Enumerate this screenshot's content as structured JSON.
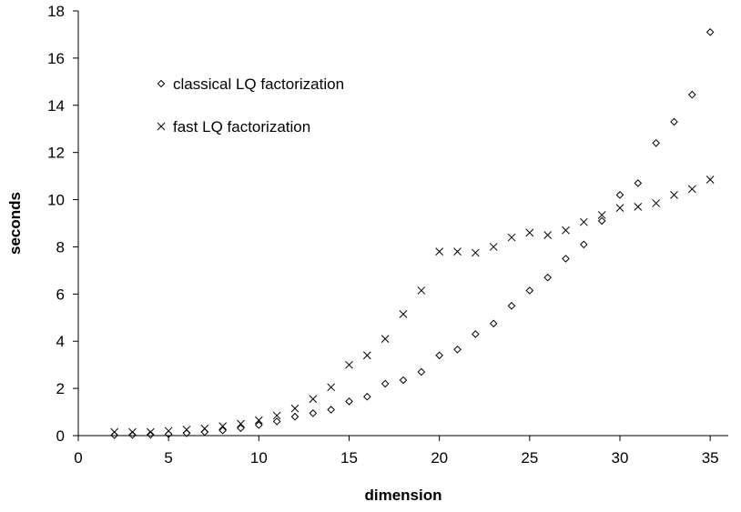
{
  "chart_data": {
    "type": "scatter",
    "xlabel": "dimension",
    "ylabel": "seconds",
    "xlim": [
      0,
      36
    ],
    "ylim": [
      0,
      18
    ],
    "x_ticks": [
      0,
      5,
      10,
      15,
      20,
      25,
      30,
      35
    ],
    "y_ticks": [
      0,
      2,
      4,
      6,
      8,
      10,
      12,
      14,
      16,
      18
    ],
    "grid": false,
    "legend_position": "top-left",
    "series": [
      {
        "name": "classical LQ factorization",
        "marker": "diamond",
        "x": [
          2,
          3,
          4,
          5,
          6,
          7,
          8,
          9,
          10,
          11,
          12,
          13,
          14,
          15,
          16,
          17,
          18,
          19,
          20,
          21,
          22,
          23,
          24,
          25,
          26,
          27,
          28,
          29,
          30,
          31,
          32,
          33,
          34,
          35
        ],
        "y": [
          0.02,
          0.03,
          0.04,
          0.06,
          0.1,
          0.15,
          0.22,
          0.32,
          0.45,
          0.6,
          0.8,
          0.95,
          1.1,
          1.45,
          1.65,
          2.2,
          2.35,
          2.7,
          3.4,
          3.65,
          4.3,
          4.75,
          5.5,
          6.15,
          6.7,
          7.5,
          8.1,
          9.1,
          10.2,
          10.7,
          12.4,
          13.3,
          14.45,
          17.1
        ]
      },
      {
        "name": "fast LQ factorization",
        "marker": "cross",
        "x": [
          2,
          3,
          4,
          5,
          6,
          7,
          8,
          9,
          10,
          11,
          12,
          13,
          14,
          15,
          16,
          17,
          18,
          19,
          20,
          21,
          22,
          23,
          24,
          25,
          26,
          27,
          28,
          29,
          30,
          31,
          32,
          33,
          34,
          35
        ],
        "y": [
          0.15,
          0.15,
          0.15,
          0.2,
          0.25,
          0.3,
          0.4,
          0.5,
          0.65,
          0.85,
          1.15,
          1.55,
          2.05,
          3.0,
          3.4,
          4.1,
          5.15,
          6.15,
          7.8,
          7.8,
          7.75,
          8.0,
          8.4,
          8.6,
          8.5,
          8.7,
          9.05,
          9.35,
          9.65,
          9.7,
          9.85,
          10.2,
          10.45,
          10.85
        ]
      }
    ]
  }
}
